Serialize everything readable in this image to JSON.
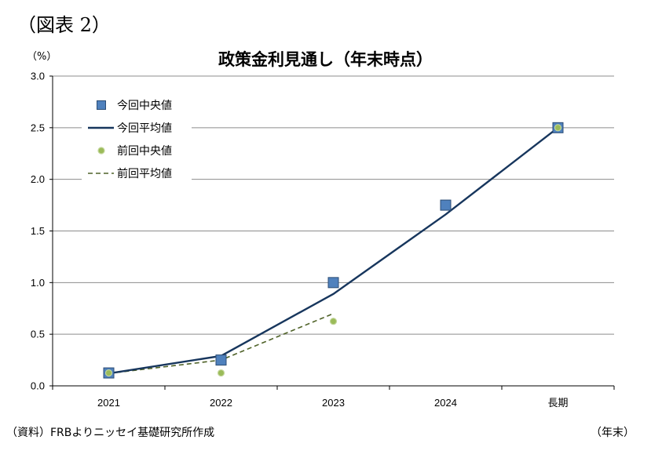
{
  "figure_label": "（図表 2）",
  "source_note": "（資料）FRBよりニッセイ基礎研究所作成",
  "chart_data": {
    "type": "line",
    "title": "政策金利見通し（年末時点）",
    "ylabel": "（%）",
    "xlabel": "（年末）",
    "categories": [
      "2021",
      "2022",
      "2023",
      "2024",
      "長期"
    ],
    "ylim": [
      0,
      3.0
    ],
    "yticks": [
      "0.0",
      "0.5",
      "1.0",
      "1.5",
      "2.0",
      "2.5",
      "3.0"
    ],
    "grid": true,
    "legend_position": "top-left",
    "series": [
      {
        "name": "今回中央値",
        "kind": "marker-square",
        "color": "#4f81bd",
        "values": [
          0.125,
          0.25,
          1.0,
          1.75,
          2.5
        ]
      },
      {
        "name": "今回平均値",
        "kind": "line-solid",
        "color": "#17365d",
        "values": [
          0.12,
          0.29,
          0.89,
          1.66,
          2.5
        ]
      },
      {
        "name": "前回中央値",
        "kind": "marker-dot",
        "color": "#9bbb59",
        "values": [
          0.125,
          0.125,
          0.625,
          null,
          2.5
        ]
      },
      {
        "name": "前回平均値",
        "kind": "line-dashed",
        "color": "#4f6228",
        "values": [
          0.12,
          0.25,
          0.7,
          null,
          null
        ]
      }
    ]
  }
}
